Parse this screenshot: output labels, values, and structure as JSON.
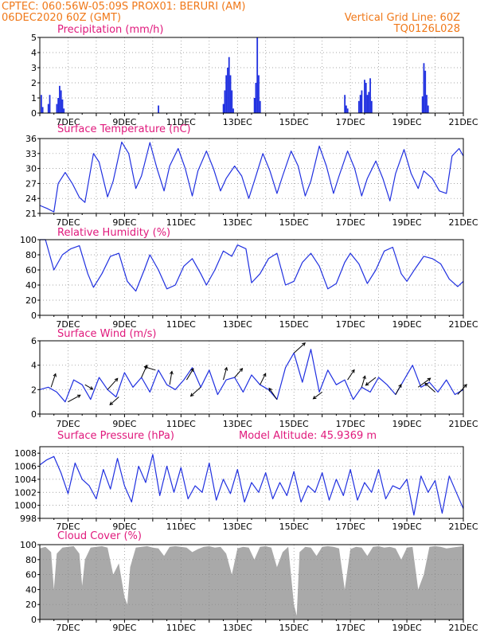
{
  "header": {
    "line1_left": "CPTEC:   060:56W-05:09S   PROX01: BERURI (AM)",
    "line2_left": "06DEC2020 60Z (GMT)",
    "line2_right": "Vertical Grid Line: 60Z",
    "line3_right": "TQ0126L028"
  },
  "colors": {
    "header": "#f07818",
    "title": "#e0197c",
    "series": "#2030e0",
    "cloud": "#a9a9a9",
    "arrow": "#000000"
  },
  "x_ticks": [
    "7DEC",
    "9DEC",
    "11DEC",
    "13DEC",
    "15DEC",
    "17DEC",
    "19DEC",
    "21DEC"
  ],
  "chart_data": [
    {
      "type": "bar",
      "title": "Precipitation (mm/h)",
      "ylim": [
        0,
        5
      ],
      "yticks": [
        "0",
        "1",
        "2",
        "3",
        "4",
        "5"
      ],
      "x_days": [
        6.05,
        6.1,
        6.3,
        6.35,
        6.6,
        6.65,
        6.7,
        6.75,
        6.8,
        6.85,
        10.2,
        12.5,
        12.55,
        12.6,
        12.65,
        12.7,
        12.75,
        12.8,
        12.85,
        13.6,
        13.65,
        13.7,
        13.75,
        13.8,
        16.8,
        16.85,
        16.9,
        17.3,
        17.35,
        17.4,
        17.5,
        17.55,
        17.6,
        17.65,
        17.7,
        17.75,
        19.55,
        19.6,
        19.65,
        19.7,
        19.75
      ],
      "values": [
        1.2,
        0.4,
        0.6,
        1.2,
        0.6,
        1.0,
        1.8,
        1.5,
        0.9,
        0.3,
        0.5,
        0.6,
        1.5,
        2.5,
        3.0,
        3.7,
        2.5,
        1.5,
        0.3,
        1.0,
        2.0,
        5.0,
        2.5,
        0.8,
        1.2,
        0.5,
        0.3,
        0.8,
        1.2,
        1.5,
        2.2,
        2.0,
        1.2,
        1.4,
        2.3,
        0.8,
        1.1,
        3.3,
        2.8,
        1.2,
        0.5
      ],
      "grid": true
    },
    {
      "type": "line",
      "title": "Surface Temperature (nC)",
      "ylim": [
        21,
        36
      ],
      "yticks": [
        "21",
        "24",
        "27",
        "30",
        "33",
        "36"
      ],
      "x_days": [
        6.0,
        6.25,
        6.5,
        6.65,
        6.9,
        7.15,
        7.4,
        7.6,
        7.9,
        8.1,
        8.4,
        8.6,
        8.9,
        9.15,
        9.4,
        9.6,
        9.9,
        10.15,
        10.4,
        10.6,
        10.9,
        11.15,
        11.4,
        11.6,
        11.9,
        12.15,
        12.4,
        12.6,
        12.9,
        13.15,
        13.4,
        13.6,
        13.9,
        14.15,
        14.4,
        14.6,
        14.9,
        15.15,
        15.4,
        15.6,
        15.9,
        16.15,
        16.4,
        16.6,
        16.9,
        17.15,
        17.4,
        17.6,
        17.9,
        18.15,
        18.4,
        18.6,
        18.9,
        19.15,
        19.4,
        19.6,
        19.9,
        20.15,
        20.4,
        20.6,
        20.85,
        21.0
      ],
      "values": [
        22.6,
        22.0,
        21.3,
        27.0,
        29.2,
        27.0,
        24.2,
        23.2,
        33.0,
        31.3,
        24.3,
        27.5,
        35.3,
        33.0,
        26.0,
        28.5,
        35.2,
        30.0,
        25.5,
        30.5,
        34.0,
        30.0,
        24.5,
        29.5,
        33.5,
        30.0,
        25.5,
        28.0,
        30.5,
        28.5,
        24.0,
        27.5,
        33.0,
        29.5,
        25.0,
        28.5,
        33.5,
        30.5,
        24.5,
        27.5,
        34.5,
        30.5,
        25.0,
        28.5,
        33.5,
        30.0,
        24.5,
        28.0,
        31.5,
        28.0,
        23.5,
        29.0,
        33.8,
        29.0,
        26.0,
        29.5,
        28.0,
        25.5,
        25.0,
        32.5,
        34.0,
        32.5
      ],
      "grid": true
    },
    {
      "type": "line",
      "title": "Relative Humidity (%)",
      "ylim": [
        0,
        100
      ],
      "yticks": [
        "0",
        "20",
        "40",
        "60",
        "80",
        "100"
      ],
      "x_days": [
        6.0,
        6.2,
        6.5,
        6.8,
        7.1,
        7.4,
        7.7,
        7.9,
        8.2,
        8.5,
        8.8,
        9.1,
        9.4,
        9.7,
        9.9,
        10.2,
        10.5,
        10.8,
        11.1,
        11.4,
        11.7,
        11.9,
        12.2,
        12.5,
        12.8,
        13.0,
        13.3,
        13.5,
        13.8,
        14.1,
        14.4,
        14.7,
        15.0,
        15.3,
        15.6,
        15.9,
        16.2,
        16.5,
        16.8,
        17.0,
        17.3,
        17.6,
        17.9,
        18.2,
        18.5,
        18.8,
        19.0,
        19.3,
        19.6,
        19.9,
        20.2,
        20.5,
        20.8,
        21.0
      ],
      "values": [
        100,
        100,
        60,
        80,
        88,
        92,
        55,
        37,
        55,
        78,
        82,
        45,
        32,
        60,
        80,
        60,
        35,
        40,
        65,
        75,
        55,
        40,
        60,
        85,
        78,
        93,
        88,
        43,
        55,
        75,
        82,
        40,
        45,
        70,
        82,
        65,
        35,
        42,
        70,
        82,
        68,
        42,
        60,
        85,
        90,
        55,
        45,
        62,
        78,
        75,
        68,
        48,
        38,
        45
      ],
      "grid": true
    },
    {
      "type": "line",
      "title": "Surface Wind (m/s)",
      "ylim": [
        0,
        6
      ],
      "yticks": [
        "0",
        "2",
        "4",
        "6"
      ],
      "x_days": [
        6.0,
        6.3,
        6.6,
        6.9,
        7.2,
        7.5,
        7.8,
        8.1,
        8.4,
        8.7,
        9.0,
        9.3,
        9.6,
        9.9,
        10.2,
        10.5,
        10.8,
        11.1,
        11.4,
        11.7,
        12.0,
        12.3,
        12.6,
        12.9,
        13.2,
        13.5,
        13.8,
        14.1,
        14.4,
        14.7,
        15.0,
        15.3,
        15.6,
        15.9,
        16.2,
        16.5,
        16.8,
        17.1,
        17.4,
        17.7,
        18.0,
        18.3,
        18.6,
        18.9,
        19.2,
        19.5,
        19.8,
        20.1,
        20.4,
        20.7,
        21.0
      ],
      "values": [
        2.0,
        2.2,
        1.8,
        1.0,
        2.8,
        2.4,
        1.2,
        3.0,
        2.0,
        1.4,
        3.4,
        2.2,
        3.0,
        1.8,
        3.6,
        2.4,
        2.0,
        2.8,
        3.8,
        2.2,
        3.6,
        1.6,
        2.8,
        3.0,
        1.8,
        3.2,
        2.4,
        2.0,
        1.2,
        3.8,
        5.0,
        2.6,
        5.3,
        1.8,
        3.6,
        2.4,
        2.8,
        1.2,
        2.2,
        1.8,
        3.0,
        2.4,
        1.6,
        2.8,
        4.0,
        2.2,
        2.6,
        1.8,
        2.8,
        1.6,
        2.0
      ],
      "arrows": [
        {
          "x": 6.4,
          "u": 0.8,
          "v": 2.4
        },
        {
          "x": 7.0,
          "u": 2.2,
          "v": 1.2
        },
        {
          "x": 7.6,
          "u": 1.4,
          "v": -0.8
        },
        {
          "x": 8.4,
          "u": 1.8,
          "v": 2.0
        },
        {
          "x": 8.8,
          "u": -1.6,
          "v": -1.4
        },
        {
          "x": 9.6,
          "u": 1.0,
          "v": 2.2
        },
        {
          "x": 10.1,
          "u": -2.0,
          "v": 0.6
        },
        {
          "x": 10.6,
          "u": 0.4,
          "v": 2.4
        },
        {
          "x": 11.2,
          "u": 1.2,
          "v": 2.0
        },
        {
          "x": 11.7,
          "u": -1.8,
          "v": -1.6
        },
        {
          "x": 12.5,
          "u": 0.6,
          "v": 2.2
        },
        {
          "x": 12.9,
          "u": 1.4,
          "v": 1.6
        },
        {
          "x": 13.8,
          "u": 1.0,
          "v": 2.0
        },
        {
          "x": 14.4,
          "u": -1.4,
          "v": 2.0
        },
        {
          "x": 15.0,
          "u": 2.0,
          "v": 1.8
        },
        {
          "x": 16.0,
          "u": -1.6,
          "v": -1.2
        },
        {
          "x": 16.9,
          "u": 1.2,
          "v": 1.8
        },
        {
          "x": 17.4,
          "u": 0.6,
          "v": 2.0
        },
        {
          "x": 17.9,
          "u": -1.8,
          "v": -1.4
        },
        {
          "x": 18.6,
          "u": 1.0,
          "v": 1.8
        },
        {
          "x": 19.4,
          "u": 2.2,
          "v": 1.6
        },
        {
          "x": 20.0,
          "u": -1.8,
          "v": 1.6
        },
        {
          "x": 20.8,
          "u": 1.6,
          "v": 1.8
        }
      ],
      "grid": true
    },
    {
      "type": "line",
      "title": "Surface Pressure (hPa)",
      "annotation": "Model Altitude: 45.9369  m",
      "ylim": [
        998,
        1009
      ],
      "yticks": [
        "998",
        "1000",
        "1002",
        "1004",
        "1006",
        "1008"
      ],
      "x_days": [
        6.0,
        6.25,
        6.5,
        6.75,
        7.0,
        7.25,
        7.5,
        7.75,
        8.0,
        8.25,
        8.5,
        8.75,
        9.0,
        9.25,
        9.5,
        9.75,
        10.0,
        10.25,
        10.5,
        10.75,
        11.0,
        11.25,
        11.5,
        11.75,
        12.0,
        12.25,
        12.5,
        12.75,
        13.0,
        13.25,
        13.5,
        13.75,
        14.0,
        14.25,
        14.5,
        14.75,
        15.0,
        15.25,
        15.5,
        15.75,
        16.0,
        16.25,
        16.5,
        16.75,
        17.0,
        17.25,
        17.5,
        17.75,
        18.0,
        18.25,
        18.5,
        18.75,
        19.0,
        19.25,
        19.5,
        19.75,
        20.0,
        20.25,
        20.5,
        20.75,
        21.0
      ],
      "values": [
        1006.2,
        1007.0,
        1007.5,
        1005.0,
        1001.8,
        1006.5,
        1004.0,
        1003.0,
        1001.0,
        1005.5,
        1002.5,
        1007.2,
        1003.0,
        1000.5,
        1006.0,
        1003.5,
        1007.8,
        1001.5,
        1006.0,
        1002.0,
        1005.8,
        1001.0,
        1003.0,
        1002.0,
        1006.5,
        1000.8,
        1004.0,
        1001.8,
        1005.5,
        1000.5,
        1003.5,
        1002.0,
        1005.0,
        1001.0,
        1003.5,
        1001.5,
        1005.2,
        1000.5,
        1003.0,
        1002.0,
        1005.0,
        1000.8,
        1004.0,
        1001.5,
        1005.5,
        1000.8,
        1003.5,
        1002.0,
        1005.5,
        1001.0,
        1003.0,
        1002.5,
        1004.0,
        998.5,
        1004.5,
        1002.0,
        1003.8,
        998.8,
        1004.5,
        1002.0,
        999.5
      ],
      "grid": true
    },
    {
      "type": "area",
      "title": "Cloud Cover (%)",
      "ylim": [
        0,
        100
      ],
      "yticks": [
        "0",
        "20",
        "40",
        "60",
        "80",
        "100"
      ],
      "x_days": [
        6.0,
        6.2,
        6.4,
        6.5,
        6.6,
        6.8,
        7.0,
        7.2,
        7.4,
        7.5,
        7.6,
        7.8,
        8.0,
        8.2,
        8.4,
        8.6,
        8.8,
        9.0,
        9.1,
        9.2,
        9.4,
        9.6,
        9.8,
        10.0,
        10.2,
        10.4,
        10.6,
        10.8,
        11.0,
        11.2,
        11.4,
        11.6,
        11.8,
        12.0,
        12.2,
        12.4,
        12.6,
        12.8,
        13.0,
        13.2,
        13.4,
        13.6,
        13.8,
        14.0,
        14.2,
        14.4,
        14.6,
        14.8,
        15.0,
        15.1,
        15.2,
        15.4,
        15.6,
        15.8,
        16.0,
        16.2,
        16.4,
        16.6,
        16.8,
        17.0,
        17.2,
        17.4,
        17.6,
        17.8,
        18.0,
        18.2,
        18.4,
        18.6,
        18.8,
        19.0,
        19.2,
        19.4,
        19.6,
        19.8,
        20.0,
        20.2,
        20.4,
        20.6,
        20.8,
        21.0
      ],
      "values": [
        95,
        97,
        90,
        40,
        88,
        96,
        97,
        98,
        88,
        45,
        80,
        96,
        97,
        98,
        96,
        60,
        75,
        30,
        20,
        70,
        96,
        97,
        98,
        96,
        95,
        85,
        97,
        98,
        97,
        96,
        90,
        94,
        97,
        98,
        96,
        97,
        88,
        60,
        95,
        97,
        96,
        80,
        97,
        98,
        96,
        70,
        90,
        97,
        20,
        5,
        90,
        97,
        96,
        85,
        97,
        98,
        97,
        95,
        40,
        94,
        97,
        96,
        85,
        97,
        98,
        96,
        97,
        95,
        80,
        96,
        97,
        40,
        60,
        97,
        98,
        97,
        95,
        96,
        97,
        98
      ],
      "grid": true
    }
  ]
}
